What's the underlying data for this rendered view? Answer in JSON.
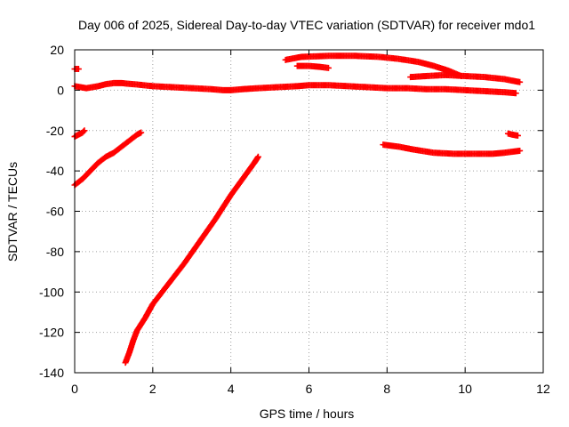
{
  "chart_data": {
    "type": "scatter",
    "title": "Day 006 of 2025, Sidereal Day-to-day VTEC variation (SDTVAR) for receiver mdo1",
    "xlabel": "GPS time / hours",
    "ylabel": "SDTVAR / TECUs",
    "xlim": [
      0,
      12
    ],
    "ylim": [
      -140,
      20
    ],
    "xticks": [
      0,
      2,
      4,
      6,
      8,
      10,
      12
    ],
    "xtick_labels": [
      "0",
      "2",
      "4",
      "6",
      "8",
      "10",
      "12"
    ],
    "yticks": [
      20,
      0,
      -20,
      -40,
      -60,
      -80,
      -100,
      -120,
      -140
    ],
    "ytick_labels": [
      "20",
      "0",
      "-20",
      "-40",
      "-60",
      "-80",
      "-100",
      "-120",
      "-140"
    ],
    "grid": true,
    "marker": "plus",
    "color": "#ff0000",
    "series": [
      {
        "name": "s1",
        "points": [
          [
            0,
            2
          ],
          [
            0.3,
            1
          ],
          [
            0.6,
            2
          ],
          [
            0.8,
            3
          ],
          [
            1.0,
            3.5
          ],
          [
            1.2,
            3.5
          ],
          [
            1.5,
            3
          ],
          [
            2.0,
            2
          ],
          [
            2.5,
            1.5
          ],
          [
            3.0,
            1
          ],
          [
            3.5,
            0.5
          ],
          [
            3.8,
            0
          ],
          [
            4.0,
            0
          ],
          [
            4.3,
            0.5
          ],
          [
            4.7,
            1
          ],
          [
            5.2,
            1.5
          ],
          [
            5.7,
            2
          ],
          [
            6.0,
            2.5
          ],
          [
            6.5,
            2.5
          ],
          [
            7.0,
            2
          ],
          [
            7.5,
            1.5
          ],
          [
            8.0,
            1
          ],
          [
            8.5,
            1
          ],
          [
            9.0,
            0.5
          ],
          [
            9.5,
            0.5
          ],
          [
            10.0,
            0
          ],
          [
            10.5,
            -0.5
          ],
          [
            11.0,
            -1
          ],
          [
            11.3,
            -1.5
          ]
        ]
      },
      {
        "name": "s2",
        "points": [
          [
            0,
            -47
          ],
          [
            0.2,
            -44
          ],
          [
            0.4,
            -40
          ],
          [
            0.6,
            -36
          ],
          [
            0.8,
            -33
          ],
          [
            1.0,
            -31
          ],
          [
            1.2,
            -28
          ],
          [
            1.4,
            -25
          ],
          [
            1.6,
            -22
          ],
          [
            1.7,
            -21
          ]
        ]
      },
      {
        "name": "s3",
        "points": [
          [
            0,
            -23
          ],
          [
            0.1,
            -22
          ],
          [
            0.2,
            -21
          ],
          [
            0.25,
            -20
          ]
        ]
      },
      {
        "name": "s4",
        "points": [
          [
            0,
            10.5
          ],
          [
            0.1,
            10.5
          ]
        ]
      },
      {
        "name": "s5",
        "points": [
          [
            1.3,
            -135
          ],
          [
            1.4,
            -130
          ],
          [
            1.5,
            -124
          ],
          [
            1.6,
            -119
          ],
          [
            1.8,
            -113
          ],
          [
            2.0,
            -106
          ],
          [
            2.4,
            -96
          ],
          [
            2.8,
            -86
          ],
          [
            3.2,
            -75
          ],
          [
            3.6,
            -64
          ],
          [
            4.0,
            -52
          ],
          [
            4.3,
            -44
          ],
          [
            4.6,
            -36
          ],
          [
            4.7,
            -33
          ]
        ]
      },
      {
        "name": "s6",
        "points": [
          [
            5.4,
            15
          ],
          [
            5.8,
            16.5
          ],
          [
            6.5,
            17
          ],
          [
            7.2,
            17
          ],
          [
            7.8,
            16.5
          ],
          [
            8.3,
            15.5
          ],
          [
            8.8,
            14
          ],
          [
            9.2,
            12
          ],
          [
            9.6,
            9.5
          ],
          [
            9.9,
            7
          ]
        ]
      },
      {
        "name": "s7",
        "points": [
          [
            5.7,
            12
          ],
          [
            6.0,
            12
          ],
          [
            6.3,
            11.5
          ],
          [
            6.5,
            11
          ]
        ]
      },
      {
        "name": "s8",
        "points": [
          [
            8.6,
            6.5
          ],
          [
            9.0,
            7
          ],
          [
            9.5,
            7.5
          ],
          [
            10.0,
            7
          ],
          [
            10.5,
            6.5
          ],
          [
            11.0,
            5.5
          ],
          [
            11.4,
            4
          ]
        ]
      },
      {
        "name": "s9",
        "points": [
          [
            7.9,
            -27
          ],
          [
            8.3,
            -28
          ],
          [
            8.7,
            -29.5
          ],
          [
            9.2,
            -31
          ],
          [
            9.7,
            -31.5
          ],
          [
            10.2,
            -31.5
          ],
          [
            10.7,
            -31.5
          ],
          [
            11.0,
            -31
          ],
          [
            11.4,
            -30
          ]
        ]
      },
      {
        "name": "s10",
        "points": [
          [
            11.1,
            -21.5
          ],
          [
            11.2,
            -22
          ],
          [
            11.35,
            -22.5
          ]
        ]
      }
    ]
  }
}
